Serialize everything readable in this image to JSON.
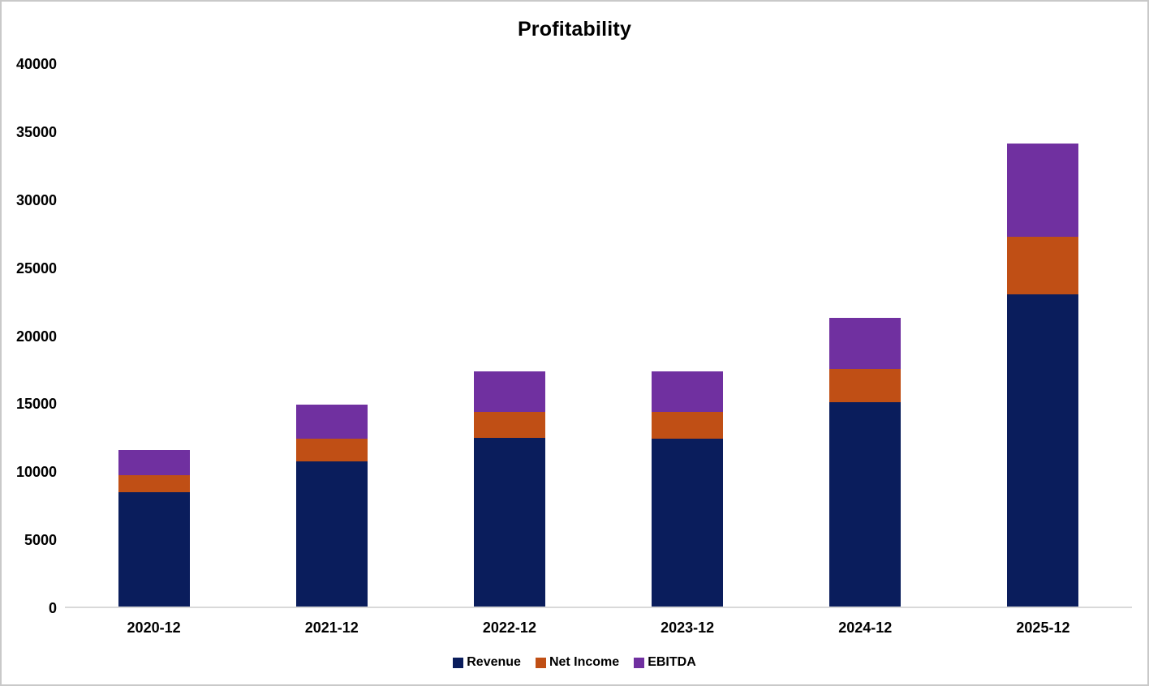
{
  "window": {
    "background": "#ffffff",
    "border_color": "#c9c9c9",
    "text_color": "#000000"
  },
  "chart_data": {
    "type": "bar",
    "stacked": true,
    "title": "Profitability",
    "categories": [
      "2020-12",
      "2021-12",
      "2022-12",
      "2023-12",
      "2024-12",
      "2025-12"
    ],
    "series": [
      {
        "name": "Revenue",
        "color": "#0a1d5c",
        "values": [
          8500,
          10800,
          12500,
          12450,
          15150,
          23050
        ]
      },
      {
        "name": "Net Income",
        "color": "#c04f15",
        "values": [
          1250,
          1650,
          1900,
          1950,
          2450,
          4250
        ]
      },
      {
        "name": "EBITDA",
        "color": "#7030a0",
        "values": [
          1900,
          2500,
          3000,
          3000,
          3750,
          6850
        ]
      }
    ],
    "xlabel": "",
    "ylabel": "",
    "ylim": [
      0,
      40000
    ],
    "y_ticks": [
      0,
      5000,
      10000,
      15000,
      20000,
      25000,
      30000,
      35000,
      40000
    ],
    "grid": false,
    "legend_position": "bottom",
    "axis_line_color": "#d9d9d9"
  }
}
